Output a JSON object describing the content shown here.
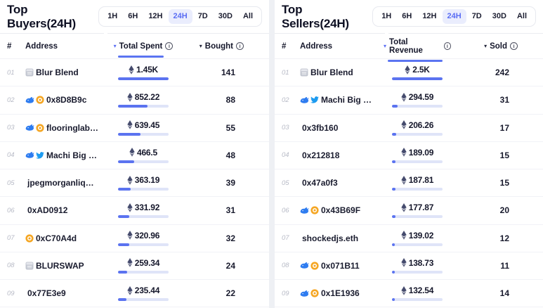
{
  "colors": {
    "accent": "#5a6df4",
    "active_filter_bg": "#eaedfd",
    "bar_fill": "#5b73f0",
    "bar_track": "#dfe4f8",
    "eth_icon": "#454b6d",
    "rank_text": "#b7bac6"
  },
  "panels": [
    {
      "title": "Top Buyers(24H)",
      "time_filters": [
        "1H",
        "6H",
        "12H",
        "24H",
        "7D",
        "30D",
        "All"
      ],
      "active_filter": "24H",
      "columns": {
        "rank": "#",
        "address": "Address",
        "value": "Total Spent",
        "count": "Bought"
      },
      "sorted_by": "Total Spent",
      "max_value": 1450,
      "rows": [
        {
          "rank": "01",
          "address": "Blur Blend",
          "badges": [
            "contract"
          ],
          "value_display": "1.45K",
          "value": 1450,
          "count": 141
        },
        {
          "rank": "02",
          "address": "0x8D8B9c",
          "badges": [
            "dolphin",
            "coin"
          ],
          "value_display": "852.22",
          "value": 852.22,
          "count": 88
        },
        {
          "rank": "03",
          "address": "flooringlab…",
          "badges": [
            "dolphin",
            "coin"
          ],
          "value_display": "639.45",
          "value": 639.45,
          "count": 55
        },
        {
          "rank": "04",
          "address": "Machi Big …",
          "badges": [
            "dolphin",
            "twitter"
          ],
          "value_display": "466.5",
          "value": 466.5,
          "count": 48
        },
        {
          "rank": "05",
          "address": "jpegmorganliq…",
          "badges": [],
          "value_display": "363.19",
          "value": 363.19,
          "count": 39
        },
        {
          "rank": "06",
          "address": "0xAD0912",
          "badges": [],
          "value_display": "331.92",
          "value": 331.92,
          "count": 31
        },
        {
          "rank": "07",
          "address": "0xC70A4d",
          "badges": [
            "coin"
          ],
          "value_display": "320.96",
          "value": 320.96,
          "count": 32
        },
        {
          "rank": "08",
          "address": "BLURSWAP",
          "badges": [
            "contract"
          ],
          "value_display": "259.34",
          "value": 259.34,
          "count": 24
        },
        {
          "rank": "09",
          "address": "0x77E3e9",
          "badges": [],
          "value_display": "235.44",
          "value": 235.44,
          "count": 22
        }
      ]
    },
    {
      "title": "Top Sellers(24H)",
      "time_filters": [
        "1H",
        "6H",
        "12H",
        "24H",
        "7D",
        "30D",
        "All"
      ],
      "active_filter": "24H",
      "columns": {
        "rank": "#",
        "address": "Address",
        "value": "Total Revenue",
        "count": "Sold"
      },
      "sorted_by": "Total Revenue",
      "max_value": 2500,
      "rows": [
        {
          "rank": "01",
          "address": "Blur Blend",
          "badges": [
            "contract"
          ],
          "value_display": "2.5K",
          "value": 2500,
          "count": 242
        },
        {
          "rank": "02",
          "address": "Machi Big …",
          "badges": [
            "dolphin",
            "twitter"
          ],
          "value_display": "294.59",
          "value": 294.59,
          "count": 31
        },
        {
          "rank": "03",
          "address": "0x3fb160",
          "badges": [],
          "value_display": "206.26",
          "value": 206.26,
          "count": 17
        },
        {
          "rank": "04",
          "address": "0x212818",
          "badges": [],
          "value_display": "189.09",
          "value": 189.09,
          "count": 15
        },
        {
          "rank": "05",
          "address": "0x47a0f3",
          "badges": [],
          "value_display": "187.81",
          "value": 187.81,
          "count": 15
        },
        {
          "rank": "06",
          "address": "0x43B69F",
          "badges": [
            "dolphin",
            "coin"
          ],
          "value_display": "177.87",
          "value": 177.87,
          "count": 20
        },
        {
          "rank": "07",
          "address": "shockedjs.eth",
          "badges": [],
          "value_display": "139.02",
          "value": 139.02,
          "count": 12
        },
        {
          "rank": "08",
          "address": "0x071B11",
          "badges": [
            "dolphin",
            "coin"
          ],
          "value_display": "138.73",
          "value": 138.73,
          "count": 11
        },
        {
          "rank": "09",
          "address": "0x1E1936",
          "badges": [
            "dolphin",
            "coin"
          ],
          "value_display": "132.54",
          "value": 132.54,
          "count": 14
        }
      ]
    }
  ]
}
